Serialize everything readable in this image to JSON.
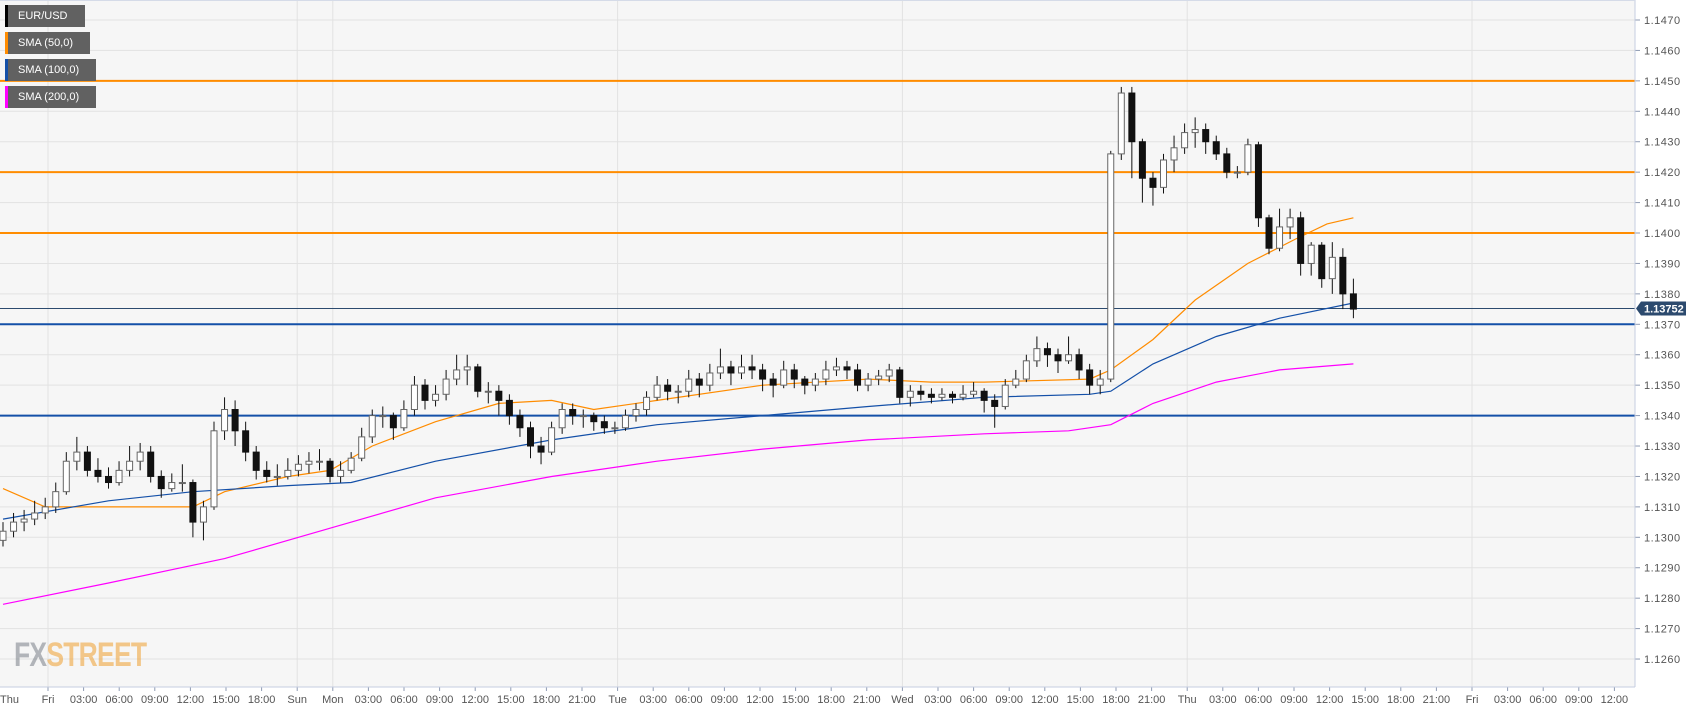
{
  "legend": [
    {
      "label": "EUR/USD",
      "color": "#000000"
    },
    {
      "label": "SMA (50,0)",
      "color": "#ff8c00"
    },
    {
      "label": "SMA (100,0)",
      "color": "#1450a8"
    },
    {
      "label": "SMA (200,0)",
      "color": "#ff00ff"
    }
  ],
  "watermark": {
    "part1": "FX",
    "part2": "STREET"
  },
  "chart_data": {
    "type": "candlestick",
    "symbol": "EUR/USD",
    "ylim": [
      1.125,
      1.1476
    ],
    "y_ticks": [
      "1.1470",
      "1.1460",
      "1.1450",
      "1.1440",
      "1.1430",
      "1.1420",
      "1.1410",
      "1.1400",
      "1.1390",
      "1.1380",
      "1.1370",
      "1.1360",
      "1.1350",
      "1.1340",
      "1.1330",
      "1.1320",
      "1.1310",
      "1.1300",
      "1.1290",
      "1.1280",
      "1.1270",
      "1.1260"
    ],
    "x_ticks": [
      "Thu",
      "Fri",
      "03:00",
      "06:00",
      "09:00",
      "12:00",
      "15:00",
      "18:00",
      "Sun",
      "Mon",
      "03:00",
      "06:00",
      "09:00",
      "12:00",
      "15:00",
      "18:00",
      "21:00",
      "Tue",
      "03:00",
      "06:00",
      "09:00",
      "12:00",
      "15:00",
      "18:00",
      "21:00",
      "Wed",
      "03:00",
      "06:00",
      "09:00",
      "12:00",
      "15:00",
      "18:00",
      "21:00",
      "Thu",
      "03:00",
      "06:00",
      "09:00",
      "12:00",
      "15:00",
      "18:00",
      "21:00",
      "Fri",
      "03:00",
      "06:00",
      "09:00",
      "12:00"
    ],
    "day_ticks": [
      "Fri",
      "Sun",
      "Mon",
      "Tue",
      "Wed",
      "Thu",
      "Fri"
    ],
    "grid": true,
    "current_price": "1.13752",
    "current_price_color": "#2c4a6e",
    "levels": [
      {
        "value": 1.145,
        "color": "#ff8c00"
      },
      {
        "value": 1.142,
        "color": "#ff8c00"
      },
      {
        "value": 1.14,
        "color": "#ff8c00"
      },
      {
        "value": 1.137,
        "color": "#1450a8"
      },
      {
        "value": 1.134,
        "color": "#1450a8"
      }
    ],
    "candles_ohlc": [
      [
        1.1299,
        1.1305,
        1.1297,
        1.1302
      ],
      [
        1.1302,
        1.1308,
        1.13,
        1.1305
      ],
      [
        1.1305,
        1.1309,
        1.1302,
        1.1306
      ],
      [
        1.1306,
        1.1312,
        1.1304,
        1.1308
      ],
      [
        1.1308,
        1.1313,
        1.1306,
        1.131
      ],
      [
        1.131,
        1.1318,
        1.1308,
        1.1315
      ],
      [
        1.1315,
        1.1328,
        1.1314,
        1.1325
      ],
      [
        1.1325,
        1.1333,
        1.1322,
        1.1328
      ],
      [
        1.1328,
        1.133,
        1.132,
        1.1322
      ],
      [
        1.1322,
        1.1326,
        1.1318,
        1.132
      ],
      [
        1.132,
        1.1323,
        1.1316,
        1.1318
      ],
      [
        1.1318,
        1.1325,
        1.1317,
        1.1322
      ],
      [
        1.1322,
        1.133,
        1.132,
        1.1325
      ],
      [
        1.1325,
        1.1331,
        1.1322,
        1.1328
      ],
      [
        1.1328,
        1.133,
        1.1318,
        1.132
      ],
      [
        1.132,
        1.1322,
        1.1313,
        1.1316
      ],
      [
        1.1316,
        1.1321,
        1.1315,
        1.1318
      ],
      [
        1.1318,
        1.1324,
        1.1315,
        1.1318
      ],
      [
        1.1318,
        1.1319,
        1.13,
        1.1305
      ],
      [
        1.1305,
        1.1312,
        1.1299,
        1.131
      ],
      [
        1.131,
        1.1338,
        1.1309,
        1.1335
      ],
      [
        1.1335,
        1.1346,
        1.1332,
        1.1342
      ],
      [
        1.1342,
        1.1345,
        1.133,
        1.1335
      ],
      [
        1.1335,
        1.1338,
        1.1325,
        1.1328
      ],
      [
        1.1328,
        1.133,
        1.1319,
        1.1322
      ],
      [
        1.1322,
        1.1325,
        1.1318,
        1.132
      ],
      [
        1.132,
        1.1324,
        1.1317,
        1.132
      ],
      [
        1.132,
        1.1326,
        1.1319,
        1.1322
      ],
      [
        1.1322,
        1.1327,
        1.132,
        1.1324
      ],
      [
        1.1324,
        1.1328,
        1.1321,
        1.1325
      ],
      [
        1.1325,
        1.1329,
        1.1322,
        1.1325
      ],
      [
        1.1325,
        1.1326,
        1.1318,
        1.132
      ],
      [
        1.132,
        1.1325,
        1.1318,
        1.1322
      ],
      [
        1.1322,
        1.1328,
        1.1321,
        1.1326
      ],
      [
        1.1326,
        1.1336,
        1.1325,
        1.1333
      ],
      [
        1.1333,
        1.1342,
        1.1331,
        1.134
      ],
      [
        1.134,
        1.1343,
        1.1336,
        1.134
      ],
      [
        1.134,
        1.1341,
        1.1332,
        1.1336
      ],
      [
        1.1336,
        1.1345,
        1.1335,
        1.1342
      ],
      [
        1.1342,
        1.1353,
        1.134,
        1.135
      ],
      [
        1.135,
        1.1352,
        1.1342,
        1.1345
      ],
      [
        1.1345,
        1.135,
        1.1343,
        1.1347
      ],
      [
        1.1347,
        1.1355,
        1.1345,
        1.1352
      ],
      [
        1.1352,
        1.136,
        1.135,
        1.1355
      ],
      [
        1.1355,
        1.136,
        1.135,
        1.1356
      ],
      [
        1.1356,
        1.1357,
        1.1346,
        1.1348
      ],
      [
        1.1348,
        1.1351,
        1.1344,
        1.1348
      ],
      [
        1.1348,
        1.135,
        1.134,
        1.1345
      ],
      [
        1.1345,
        1.1347,
        1.1337,
        1.134
      ],
      [
        1.134,
        1.1342,
        1.1333,
        1.1336
      ],
      [
        1.1336,
        1.1338,
        1.1326,
        1.133
      ],
      [
        1.133,
        1.1333,
        1.1324,
        1.1328
      ],
      [
        1.1328,
        1.1338,
        1.1327,
        1.1336
      ],
      [
        1.1336,
        1.1344,
        1.1334,
        1.1342
      ],
      [
        1.1342,
        1.1344,
        1.1337,
        1.134
      ],
      [
        1.134,
        1.1342,
        1.1336,
        1.134
      ],
      [
        1.134,
        1.1341,
        1.1335,
        1.1338
      ],
      [
        1.1338,
        1.134,
        1.1334,
        1.1336
      ],
      [
        1.1336,
        1.1338,
        1.1334,
        1.1336
      ],
      [
        1.1336,
        1.1342,
        1.1335,
        1.134
      ],
      [
        1.134,
        1.1344,
        1.1338,
        1.1342
      ],
      [
        1.1342,
        1.1348,
        1.134,
        1.1346
      ],
      [
        1.1346,
        1.1353,
        1.1345,
        1.135
      ],
      [
        1.135,
        1.1352,
        1.1345,
        1.1348
      ],
      [
        1.1348,
        1.135,
        1.1344,
        1.1348
      ],
      [
        1.1348,
        1.1355,
        1.1346,
        1.1352
      ],
      [
        1.1352,
        1.1354,
        1.1346,
        1.135
      ],
      [
        1.135,
        1.1357,
        1.1348,
        1.1354
      ],
      [
        1.1354,
        1.1362,
        1.1352,
        1.1356
      ],
      [
        1.1356,
        1.1358,
        1.135,
        1.1354
      ],
      [
        1.1354,
        1.136,
        1.1352,
        1.1356
      ],
      [
        1.1356,
        1.136,
        1.1352,
        1.1355
      ],
      [
        1.1355,
        1.1357,
        1.1348,
        1.1352
      ],
      [
        1.1352,
        1.1354,
        1.1346,
        1.135
      ],
      [
        1.135,
        1.1358,
        1.1349,
        1.1355
      ],
      [
        1.1355,
        1.1357,
        1.1349,
        1.1352
      ],
      [
        1.1352,
        1.1353,
        1.1347,
        1.135
      ],
      [
        1.135,
        1.1354,
        1.1348,
        1.1352
      ],
      [
        1.1352,
        1.1358,
        1.135,
        1.1355
      ],
      [
        1.1355,
        1.1359,
        1.1353,
        1.1356
      ],
      [
        1.1356,
        1.1358,
        1.1352,
        1.1355
      ],
      [
        1.1355,
        1.1357,
        1.1348,
        1.135
      ],
      [
        1.135,
        1.1354,
        1.1348,
        1.1352
      ],
      [
        1.1352,
        1.1355,
        1.135,
        1.1353
      ],
      [
        1.1353,
        1.1357,
        1.1351,
        1.1355
      ],
      [
        1.1355,
        1.1356,
        1.1344,
        1.1346
      ],
      [
        1.1346,
        1.135,
        1.1343,
        1.1348
      ],
      [
        1.1348,
        1.135,
        1.1345,
        1.1347
      ],
      [
        1.1347,
        1.1349,
        1.1344,
        1.1346
      ],
      [
        1.1346,
        1.1349,
        1.1345,
        1.1347
      ],
      [
        1.1347,
        1.1348,
        1.1344,
        1.1346
      ],
      [
        1.1346,
        1.135,
        1.1345,
        1.1347
      ],
      [
        1.1347,
        1.1351,
        1.1346,
        1.1348
      ],
      [
        1.1348,
        1.1349,
        1.1341,
        1.1345
      ],
      [
        1.1345,
        1.1347,
        1.1336,
        1.1343
      ],
      [
        1.1343,
        1.1352,
        1.1342,
        1.135
      ],
      [
        1.135,
        1.1355,
        1.1349,
        1.1352
      ],
      [
        1.1352,
        1.136,
        1.1351,
        1.1358
      ],
      [
        1.1358,
        1.1366,
        1.1356,
        1.1362
      ],
      [
        1.1362,
        1.1364,
        1.1356,
        1.136
      ],
      [
        1.136,
        1.1362,
        1.1354,
        1.1358
      ],
      [
        1.1358,
        1.1366,
        1.1357,
        1.136
      ],
      [
        1.136,
        1.1362,
        1.1352,
        1.1355
      ],
      [
        1.1355,
        1.1357,
        1.1347,
        1.135
      ],
      [
        1.135,
        1.1355,
        1.1347,
        1.1352
      ],
      [
        1.1352,
        1.1427,
        1.1351,
        1.1426
      ],
      [
        1.1426,
        1.1448,
        1.1424,
        1.1446
      ],
      [
        1.1446,
        1.1448,
        1.1418,
        1.143
      ],
      [
        1.143,
        1.1431,
        1.141,
        1.1418
      ],
      [
        1.1418,
        1.142,
        1.1409,
        1.1415
      ],
      [
        1.1415,
        1.1426,
        1.1413,
        1.1424
      ],
      [
        1.1424,
        1.1432,
        1.142,
        1.1428
      ],
      [
        1.1428,
        1.1436,
        1.1426,
        1.1433
      ],
      [
        1.1433,
        1.1438,
        1.1428,
        1.1434
      ],
      [
        1.1434,
        1.1436,
        1.1426,
        1.143
      ],
      [
        1.143,
        1.1432,
        1.1424,
        1.1426
      ],
      [
        1.1426,
        1.1428,
        1.1418,
        1.142
      ],
      [
        1.142,
        1.1422,
        1.1418,
        1.142
      ],
      [
        1.142,
        1.1431,
        1.1419,
        1.1429
      ],
      [
        1.1429,
        1.143,
        1.1402,
        1.1405
      ],
      [
        1.1405,
        1.1406,
        1.1393,
        1.1395
      ],
      [
        1.1395,
        1.1408,
        1.1394,
        1.1402
      ],
      [
        1.1402,
        1.1408,
        1.1398,
        1.1405
      ],
      [
        1.1405,
        1.1407,
        1.1386,
        1.139
      ],
      [
        1.139,
        1.1397,
        1.1386,
        1.1396
      ],
      [
        1.1396,
        1.1397,
        1.1382,
        1.1385
      ],
      [
        1.1385,
        1.1397,
        1.138,
        1.1392
      ],
      [
        1.1392,
        1.1395,
        1.1375,
        1.138
      ],
      [
        1.138,
        1.1385,
        1.1372,
        1.1375
      ]
    ],
    "sma_series": [
      {
        "name": "SMA (50,0)",
        "color": "#ff8c00",
        "points": [
          [
            0,
            1.1316
          ],
          [
            4,
            1.131
          ],
          [
            10,
            1.131
          ],
          [
            14,
            1.131
          ],
          [
            18,
            1.131
          ],
          [
            21,
            1.1315
          ],
          [
            27,
            1.132
          ],
          [
            31,
            1.1322
          ],
          [
            35,
            1.133
          ],
          [
            41,
            1.1338
          ],
          [
            47,
            1.1344
          ],
          [
            52,
            1.1345
          ],
          [
            56,
            1.1342
          ],
          [
            62,
            1.1345
          ],
          [
            72,
            1.135
          ],
          [
            82,
            1.1352
          ],
          [
            88,
            1.1351
          ],
          [
            93,
            1.1351
          ],
          [
            103,
            1.1352
          ],
          [
            105,
            1.1355
          ],
          [
            109,
            1.1365
          ],
          [
            113,
            1.1378
          ],
          [
            118,
            1.139
          ],
          [
            122.5,
            1.1398
          ],
          [
            125.5,
            1.1403
          ],
          [
            128,
            1.1405
          ]
        ]
      },
      {
        "name": "SMA (100,0)",
        "color": "#1450a8",
        "points": [
          [
            0,
            1.1306
          ],
          [
            10,
            1.1312
          ],
          [
            18,
            1.1315
          ],
          [
            27,
            1.1317
          ],
          [
            33,
            1.1318
          ],
          [
            41,
            1.1325
          ],
          [
            52,
            1.1332
          ],
          [
            62,
            1.1337
          ],
          [
            72,
            1.134
          ],
          [
            82,
            1.1343
          ],
          [
            93,
            1.1346
          ],
          [
            103,
            1.1347
          ],
          [
            105,
            1.1348
          ],
          [
            109,
            1.1357
          ],
          [
            115,
            1.1366
          ],
          [
            121,
            1.1372
          ],
          [
            128,
            1.1377
          ]
        ]
      },
      {
        "name": "SMA (200,0)",
        "color": "#ff00ff",
        "points": [
          [
            0,
            1.1278
          ],
          [
            10,
            1.1285
          ],
          [
            21,
            1.1293
          ],
          [
            31,
            1.1303
          ],
          [
            41,
            1.1313
          ],
          [
            52,
            1.132
          ],
          [
            62,
            1.1325
          ],
          [
            72,
            1.1329
          ],
          [
            82,
            1.1332
          ],
          [
            93,
            1.1334
          ],
          [
            101,
            1.1335
          ],
          [
            105,
            1.1337
          ],
          [
            109,
            1.1344
          ],
          [
            115,
            1.1351
          ],
          [
            121,
            1.1355
          ],
          [
            128,
            1.1357
          ]
        ]
      }
    ]
  }
}
